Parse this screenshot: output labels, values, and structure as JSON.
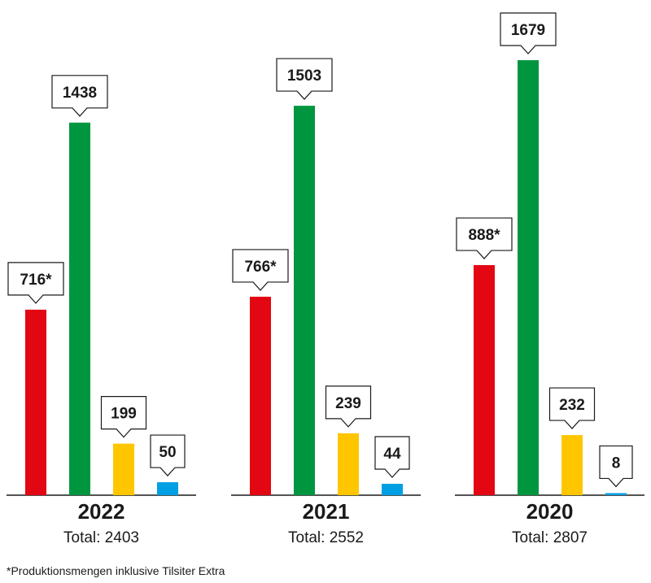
{
  "chart_data": {
    "type": "bar",
    "groups": [
      {
        "year": "2022",
        "total_text": "Total: 2403",
        "bars": [
          {
            "value": 716,
            "label": "716*"
          },
          {
            "value": 1438,
            "label": "1438"
          },
          {
            "value": 199,
            "label": "199"
          },
          {
            "value": 50,
            "label": "50"
          }
        ]
      },
      {
        "year": "2021",
        "total_text": "Total: 2552",
        "bars": [
          {
            "value": 766,
            "label": "766*"
          },
          {
            "value": 1503,
            "label": "1503"
          },
          {
            "value": 239,
            "label": "239"
          },
          {
            "value": 44,
            "label": "44"
          }
        ]
      },
      {
        "year": "2020",
        "total_text": "Total: 2807",
        "bars": [
          {
            "value": 888,
            "label": "888*"
          },
          {
            "value": 1679,
            "label": "1679"
          },
          {
            "value": 232,
            "label": "232"
          },
          {
            "value": 8,
            "label": "8"
          }
        ]
      }
    ],
    "colors": [
      "#e30613",
      "#009640",
      "#ffc600",
      "#009fe3"
    ],
    "ylim": [
      0,
      1679
    ]
  },
  "footnote": "*Produktionsmengen inklusive Tilsiter Extra"
}
